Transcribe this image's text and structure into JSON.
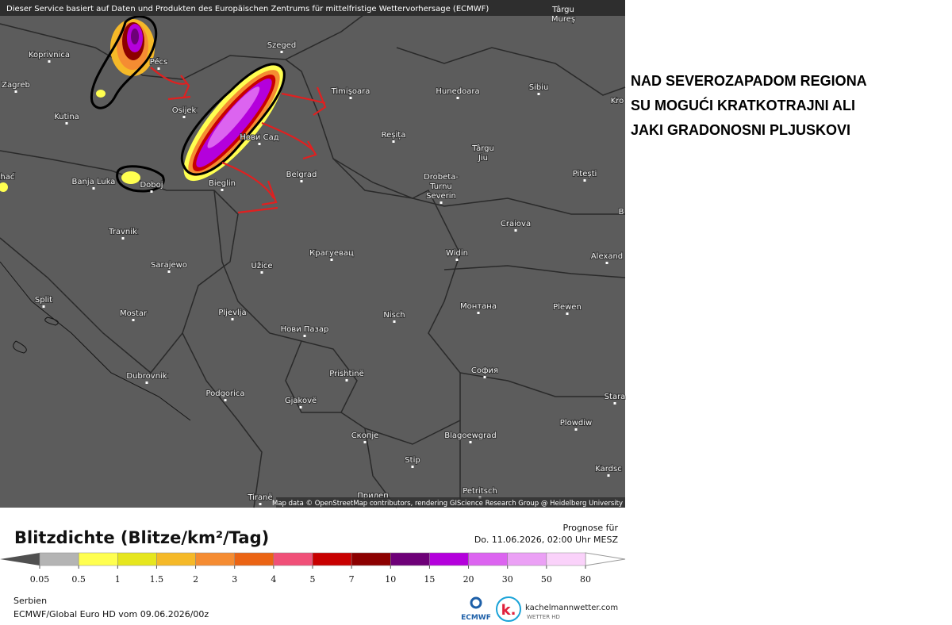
{
  "map": {
    "banner": "Dieser Service basiert auf Daten und Produkten des Europäischen Zentrums für mittelfristige Wettervorhersage (ECMWF)",
    "cities": [
      "Koprivnica",
      "Zagreb",
      "Pécs",
      "Szeged",
      "Osijek",
      "Kutina",
      "Timişoara",
      "Hunedoara",
      "Sibiu",
      "Târgu",
      "Mureș",
      "Reșița",
      "Нови Сад",
      "Târgu",
      "Jiu",
      "Pitești",
      "Banja Luka",
      "Doboj",
      "Bieglin",
      "Belgrad",
      "Drobeta-",
      "Turnu",
      "Severin",
      "Travnik",
      "Craiova",
      "Крагуевац",
      "Užice",
      "Sarajewo",
      "Widin",
      "Alexand",
      "Split",
      "Mostar",
      "Pljevlja",
      "Nisch",
      "Монтана",
      "Plewen",
      "Нови Пазар",
      "Dubrovnik",
      "Prishtinë",
      "София",
      "Podgorica",
      "Gjakovë",
      "Скопје",
      "Blagoewgrad",
      "Plowdiw",
      "Stip",
      "Kardsc",
      "Petritsch",
      "Tiranë",
      "Прилеп",
      "Stara",
      "Kro",
      "B",
      "ihać"
    ],
    "attribution": "Map data © OpenStreetMap contributors, rendering GIScience Research Group @ Heidelberg University"
  },
  "annotation": {
    "lines": [
      "NAD SEVEROZAPADOM REGIONA",
      "SU MOGUĆI KRATKOTRAJNI ALI",
      "JAKI GRADONOSNI PLJUSKOVI"
    ]
  },
  "legend": {
    "title": "Blitzdichte (Blitze/km²/Tag)",
    "ticks": [
      0.05,
      0.5,
      1,
      1.5,
      2,
      3,
      4,
      5,
      7,
      10,
      15,
      20,
      30,
      50,
      80
    ],
    "colors": [
      "#b4b4b4",
      "#ffff50",
      "#e6e61e",
      "#f5b928",
      "#f58c32",
      "#eb6414",
      "#f05078",
      "#c80000",
      "#8c0000",
      "#6e0078",
      "#b400dc",
      "#dc64f0",
      "#eba0f5",
      "#fad2fa"
    ]
  },
  "forecast": {
    "label": "Prognose für",
    "time": "Do. 11.06.2026, 02:00 Uhr MESZ"
  },
  "footer": {
    "region": "Serbien",
    "model": "ECMWF/Global Euro HD vom  09.06.2026/00z"
  },
  "logos": {
    "ecmwf": "ECMWF",
    "site": "kachelmannwetter.com",
    "tagline": "WETTER HD"
  }
}
